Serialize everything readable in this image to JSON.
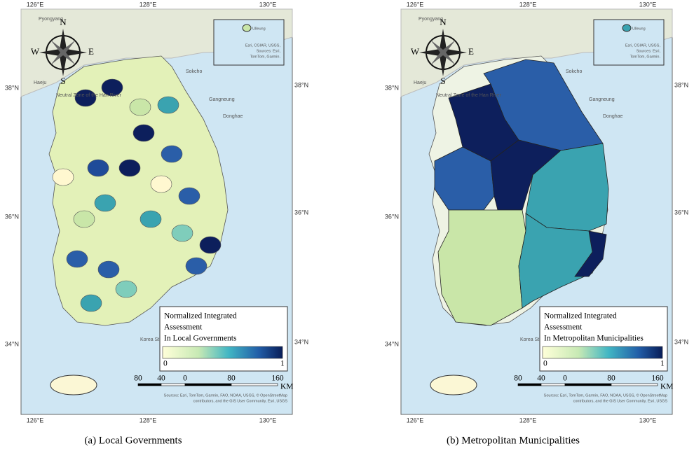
{
  "panels": [
    {
      "caption": "(a)  Local  Governments",
      "lon_labels": [
        "126°E",
        "128°E",
        "130°E"
      ],
      "lat_labels": [
        "38°N",
        "36°N",
        "34°N"
      ],
      "compass": {
        "n": "N",
        "e": "E",
        "s": "S",
        "w": "W"
      },
      "places": [
        "Pyongyang",
        "Haeju",
        "Sokcho",
        "Gangneung",
        "Donghae",
        "Neutral Zone of the Han River",
        "Korea Strait"
      ],
      "inset": {
        "label": "Ulleung",
        "attribution": [
          "Esri, CGIAR, USGS,",
          "Sources: Esri,",
          "TomTom, Garmin."
        ]
      },
      "legend": {
        "title": [
          "Normalized Integrated",
          "Assessment",
          "In Local Governments"
        ],
        "min": "0",
        "max": "1"
      },
      "scale": {
        "ticks": [
          "80",
          "40",
          "0",
          "80",
          "160"
        ],
        "unit": "KM"
      },
      "attribution": [
        "Sources: Esri, TomTom, Garmin, FAO, NOAA, USGS, © OpenStreetMap",
        "contributors, and the GIS User Community, Esri, USGS"
      ]
    },
    {
      "caption": "(b)  Metropolitan  Municipalities",
      "lon_labels": [
        "126°E",
        "128°E",
        "130°E"
      ],
      "lat_labels": [
        "38°N",
        "36°N",
        "34°N"
      ],
      "compass": {
        "n": "N",
        "e": "E",
        "s": "S",
        "w": "W"
      },
      "places": [
        "Pyongyang",
        "Haeju",
        "Sokcho",
        "Gangneung",
        "Donghae",
        "Neutral Zone of the Han River",
        "Korea Strait"
      ],
      "inset": {
        "label": "Ulleung",
        "attribution": [
          "Esri, CGIAR, USGS,",
          "Sources: Esri,",
          "TomTom, Garmin."
        ]
      },
      "legend": {
        "title": [
          "Normalized Integrated",
          "Assessment",
          "In Metropolitan Municipalities"
        ],
        "min": "0",
        "max": "1"
      },
      "scale": {
        "ticks": [
          "80",
          "40",
          "0",
          "80",
          "160"
        ],
        "unit": "KM"
      },
      "attribution": [
        "Sources: Esri, TomTom, Garmin, FAO, NOAA, USGS, © OpenStreetMap",
        "contributors, and the GIS User Community, Esri, USGS"
      ]
    }
  ]
}
